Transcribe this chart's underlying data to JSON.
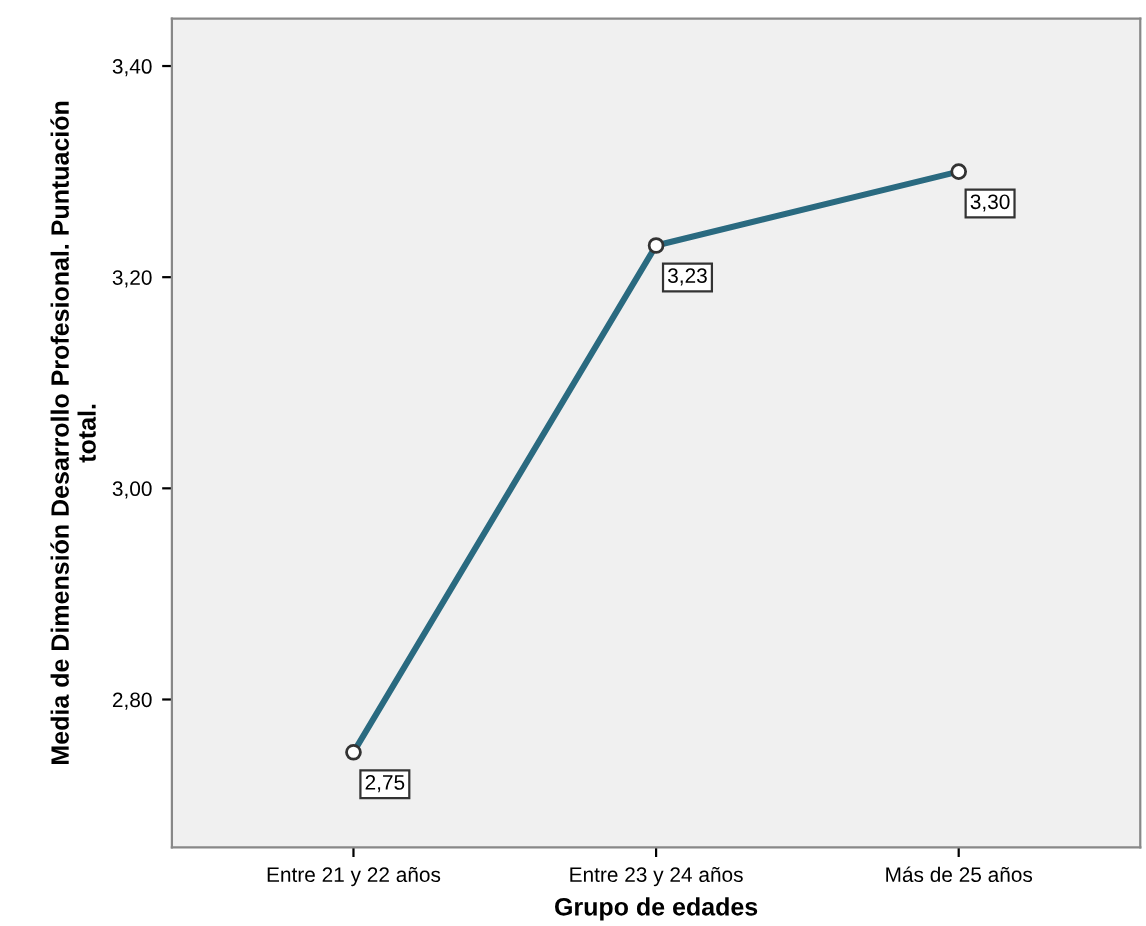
{
  "chart_data": {
    "type": "line",
    "xlabel": "Grupo de edades",
    "ylabel": "Media de Dimensión Desarrollo Profesional. Puntuación\ntotal.",
    "categories": [
      "Entre 21 y 22 años",
      "Entre 23 y 24 años",
      "Más de 25 años"
    ],
    "series": [
      {
        "color": "#2a6a80",
        "values": [
          2.75,
          3.23,
          3.3
        ],
        "value_labels": [
          "2,75",
          "3,23",
          "3,30"
        ]
      }
    ],
    "ylim": [
      2.66,
      3.445
    ],
    "yticks": [
      {
        "value": 2.8,
        "label": "2,80"
      },
      {
        "value": 3.0,
        "label": "3,00"
      },
      {
        "value": 3.2,
        "label": "3,20"
      },
      {
        "value": 3.4,
        "label": "3,40"
      }
    ],
    "marker": "circle",
    "line_style": "solid",
    "grid": false,
    "legend": false
  }
}
